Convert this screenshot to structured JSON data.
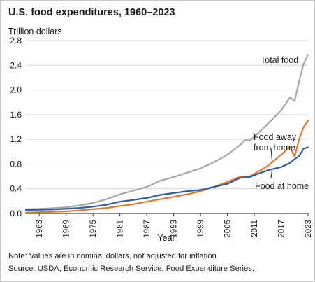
{
  "title": "U.S. food expenditures, 1960–2023",
  "unit_label": "Trillion dollars",
  "note": "Note: Values are in nominal dollars, not adjusted for inflation.",
  "source": "Source: USDA, Economic Research Service, Food Expenditure Series.",
  "chart_data": {
    "type": "line",
    "title": "U.S. food expenditures, 1960–2023",
    "xlabel": "Year",
    "ylabel": "Trillion dollars",
    "xlim": [
      1960,
      2023
    ],
    "ylim": [
      0,
      2.8
    ],
    "x_ticks": [
      1963,
      1969,
      1975,
      1981,
      1987,
      1993,
      1999,
      2005,
      2011,
      2017,
      2023
    ],
    "y_ticks": [
      0.0,
      0.4,
      0.8,
      1.2,
      1.6,
      2.0,
      2.4,
      2.8
    ],
    "y_tick_labels": [
      "0.0",
      "0.4",
      "0.8",
      "1.2",
      "1.6",
      "2.0",
      "2.4",
      "2.8"
    ],
    "grid": "horizontal",
    "series": [
      {
        "name": "Total food",
        "color": "#a6a6a6",
        "x": [
          1960,
          1963,
          1966,
          1969,
          1972,
          1975,
          1978,
          1981,
          1984,
          1987,
          1990,
          1993,
          1996,
          1999,
          2002,
          2005,
          2008,
          2009,
          2010,
          2011,
          2014,
          2017,
          2019,
          2020,
          2021,
          2022,
          2023
        ],
        "y": [
          0.07,
          0.075,
          0.085,
          0.1,
          0.13,
          0.17,
          0.23,
          0.31,
          0.37,
          0.43,
          0.53,
          0.59,
          0.66,
          0.73,
          0.83,
          0.95,
          1.12,
          1.19,
          1.18,
          1.24,
          1.45,
          1.67,
          1.88,
          1.82,
          2.14,
          2.42,
          2.57
        ]
      },
      {
        "name": "Food away from home",
        "color": "#e8762b",
        "x": [
          1960,
          1963,
          1966,
          1969,
          1972,
          1975,
          1978,
          1981,
          1984,
          1987,
          1990,
          1993,
          1996,
          1999,
          2002,
          2005,
          2008,
          2010,
          2011,
          2014,
          2017,
          2019,
          2020,
          2021,
          2022,
          2023
        ],
        "y": [
          0.015,
          0.02,
          0.025,
          0.035,
          0.05,
          0.07,
          0.09,
          0.12,
          0.15,
          0.19,
          0.23,
          0.27,
          0.31,
          0.36,
          0.43,
          0.51,
          0.6,
          0.6,
          0.64,
          0.77,
          0.95,
          1.08,
          0.92,
          1.2,
          1.4,
          1.5
        ]
      },
      {
        "name": "Food at home",
        "color": "#2f5da8",
        "x": [
          1960,
          1963,
          1966,
          1969,
          1972,
          1975,
          1978,
          1981,
          1984,
          1987,
          1990,
          1993,
          1996,
          1999,
          2002,
          2005,
          2008,
          2010,
          2011,
          2014,
          2017,
          2019,
          2020,
          2021,
          2022,
          2023
        ],
        "y": [
          0.055,
          0.06,
          0.065,
          0.075,
          0.09,
          0.11,
          0.14,
          0.19,
          0.22,
          0.25,
          0.3,
          0.33,
          0.36,
          0.38,
          0.43,
          0.48,
          0.58,
          0.59,
          0.62,
          0.7,
          0.75,
          0.82,
          0.88,
          0.93,
          1.05,
          1.07
        ]
      }
    ],
    "legend": "inline",
    "annotations": [
      {
        "series": 0,
        "text": [
          "Total food"
        ]
      },
      {
        "series": 1,
        "text": [
          "Food away",
          "from home"
        ]
      },
      {
        "series": 2,
        "text": [
          "Food at home"
        ]
      }
    ]
  }
}
